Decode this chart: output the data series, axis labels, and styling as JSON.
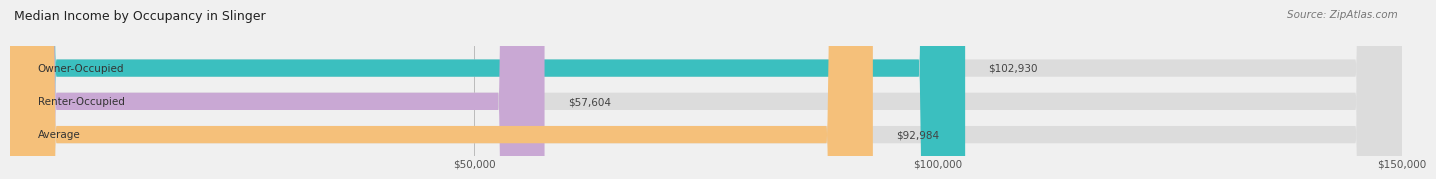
{
  "title": "Median Income by Occupancy in Slinger",
  "source": "Source: ZipAtlas.com",
  "categories": [
    "Owner-Occupied",
    "Renter-Occupied",
    "Average"
  ],
  "values": [
    102930,
    57604,
    92984
  ],
  "bar_colors": [
    "#3bbfbf",
    "#c9a8d4",
    "#f5c07a"
  ],
  "value_labels": [
    "$102,930",
    "$57,604",
    "$92,984"
  ],
  "xlim": [
    0,
    150000
  ],
  "xticks": [
    50000,
    100000,
    150000
  ],
  "xtick_labels": [
    "$50,000",
    "$100,000",
    "$150,000"
  ],
  "title_fontsize": 9,
  "source_fontsize": 7.5,
  "label_fontsize": 7.5,
  "bar_height": 0.52,
  "background_color": "#f0f0f0"
}
